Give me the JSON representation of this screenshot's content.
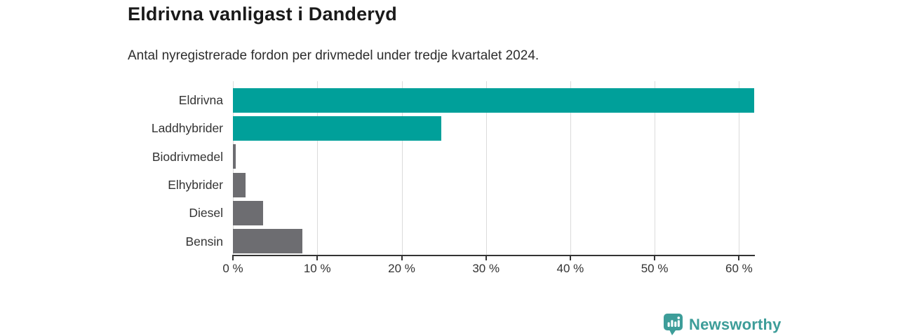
{
  "title": "Eldrivna vanligast i Danderyd",
  "subtitle": "Antal nyregistrerade fordon per drivmedel under tredje kvartalet 2024.",
  "colors": {
    "bar_teal": "#00a09a",
    "bar_gray": "#6d6d71",
    "gridline": "#dbdbdb",
    "axis": "#333333",
    "text": "#333333",
    "title_text": "#1a1a1a",
    "brand_teal": "#3d9d99"
  },
  "chart_data": {
    "type": "bar",
    "orientation": "horizontal",
    "title": "Eldrivna vanligast i Danderyd",
    "subtitle": "Antal nyregistrerade fordon per drivmedel under tredje kvartalet 2024.",
    "categories": [
      "Eldrivna",
      "Laddhybrider",
      "Biodrivmedel",
      "Elhybrider",
      "Diesel",
      "Bensin"
    ],
    "values": [
      61.8,
      24.7,
      0.3,
      1.5,
      3.6,
      8.2
    ],
    "unit": "%",
    "bar_colors": [
      "#00a09a",
      "#00a09a",
      "#6d6d71",
      "#6d6d71",
      "#6d6d71",
      "#6d6d71"
    ],
    "xlabel": "",
    "ylabel": "",
    "xlim": [
      0,
      61.8
    ],
    "xticks": [
      0,
      10,
      20,
      30,
      40,
      50,
      60
    ],
    "xtick_labels": [
      "0 %",
      "10 %",
      "20 %",
      "30 %",
      "40 %",
      "50 %",
      "60 %"
    ],
    "grid": true,
    "legend": false
  },
  "branding": {
    "name": "Newsworthy",
    "icon": "bar-chart-bubble-icon"
  }
}
